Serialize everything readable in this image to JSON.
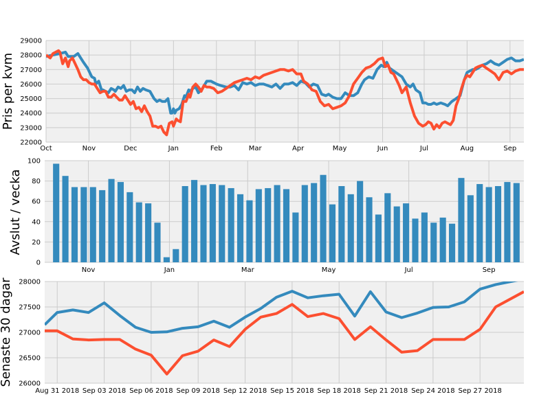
{
  "colors": {
    "blue": "#348ABD",
    "red": "#FC4F30",
    "panel_bg": "#F0F0F0",
    "grid": "#CBCBCB"
  },
  "chart_data": [
    {
      "type": "line",
      "ylabel": "Pris per kvm",
      "ylim": [
        22000,
        29000
      ],
      "yticks": [
        22000,
        23000,
        24000,
        25000,
        26000,
        27000,
        28000,
        29000
      ],
      "xlim": [
        0,
        345
      ],
      "xticks": [
        {
          "label": "Oct",
          "x": 0
        },
        {
          "label": "Nov",
          "x": 31
        },
        {
          "label": "Dec",
          "x": 61
        },
        {
          "label": "Jan",
          "x": 92
        },
        {
          "label": "Feb",
          "x": 123
        },
        {
          "label": "Mar",
          "x": 151
        },
        {
          "label": "Apr",
          "x": 182
        },
        {
          "label": "May",
          "x": 212
        },
        {
          "label": "Jun",
          "x": 243
        },
        {
          "label": "Jul",
          "x": 273
        },
        {
          "label": "Aug",
          "x": 304
        },
        {
          "label": "Sep",
          "x": 335
        }
      ],
      "grid": true,
      "series": [
        {
          "color": "blue",
          "x": [
            0,
            5,
            10,
            14,
            16,
            20,
            23,
            25,
            27,
            30,
            31,
            33,
            35,
            36,
            38,
            40,
            41,
            43,
            45,
            47,
            49,
            50,
            52,
            54,
            56,
            58,
            60,
            62,
            64,
            66,
            68,
            70,
            72,
            75,
            78,
            80,
            82,
            84,
            86,
            88,
            90,
            91,
            92,
            93,
            94,
            96,
            98,
            100,
            101,
            103,
            104,
            106,
            108,
            110,
            113,
            116,
            119,
            121,
            123,
            126,
            130,
            133,
            136,
            139,
            142,
            145,
            148,
            151,
            154,
            157,
            160,
            163,
            166,
            169,
            172,
            175,
            178,
            181,
            184,
            187,
            190,
            193,
            196,
            199,
            202,
            204,
            207,
            210,
            213,
            216,
            219,
            222,
            225,
            228,
            230,
            233,
            236,
            239,
            242,
            244,
            246,
            248,
            251,
            254,
            257,
            260,
            263,
            265,
            267,
            270,
            272,
            274,
            276,
            278,
            280,
            282,
            285,
            288,
            290,
            293,
            296,
            299,
            302,
            304,
            306,
            308,
            310,
            312,
            315,
            318,
            321,
            324,
            327,
            330,
            333,
            336,
            339,
            342,
            345
          ],
          "y": [
            27900,
            28000,
            28100,
            28200,
            27900,
            27900,
            28100,
            27800,
            27500,
            27100,
            26900,
            26500,
            26400,
            26000,
            26200,
            25600,
            25600,
            25500,
            25400,
            25700,
            25600,
            25500,
            25800,
            25700,
            25900,
            25500,
            25600,
            25600,
            25400,
            25800,
            25500,
            25700,
            25600,
            25500,
            25000,
            24800,
            24900,
            24800,
            24800,
            25000,
            24000,
            24000,
            24300,
            24000,
            24200,
            24300,
            24600,
            25200,
            25100,
            25600,
            25500,
            25700,
            25800,
            25400,
            25700,
            26200,
            26200,
            26100,
            26000,
            25900,
            25800,
            25800,
            25900,
            25600,
            26100,
            26000,
            26100,
            25900,
            26000,
            26000,
            25900,
            25800,
            26000,
            25700,
            26000,
            26000,
            26100,
            25900,
            26200,
            26100,
            25800,
            26000,
            25900,
            25300,
            25200,
            25300,
            25100,
            25000,
            25000,
            25400,
            25200,
            25200,
            25400,
            26000,
            26300,
            26500,
            26400,
            27000,
            27300,
            27200,
            27500,
            27100,
            26900,
            26700,
            26500,
            26000,
            25800,
            26000,
            25600,
            25400,
            24700,
            24700,
            24600,
            24600,
            24700,
            24600,
            24700,
            24600,
            24500,
            24800,
            25000,
            25200,
            26300,
            26800,
            26900,
            27000,
            27000,
            27100,
            27300,
            27400,
            27600,
            27400,
            27300,
            27500,
            27700,
            27800,
            27600,
            27600,
            27700
          ]
        },
        {
          "color": "red",
          "x": [
            0,
            3,
            5,
            7,
            9,
            10,
            12,
            14,
            16,
            17,
            19,
            21,
            23,
            25,
            27,
            29,
            31,
            33,
            35,
            37,
            39,
            41,
            43,
            45,
            47,
            49,
            51,
            53,
            55,
            57,
            59,
            61,
            63,
            65,
            67,
            69,
            71,
            73,
            75,
            77,
            79,
            81,
            83,
            85,
            87,
            89,
            91,
            92,
            94,
            95,
            97,
            99,
            101,
            103,
            104,
            106,
            108,
            110,
            112,
            114,
            116,
            118,
            121,
            124,
            127,
            130,
            133,
            136,
            139,
            142,
            145,
            148,
            151,
            154,
            157,
            160,
            163,
            166,
            169,
            172,
            175,
            178,
            181,
            184,
            186,
            189,
            192,
            195,
            198,
            201,
            204,
            207,
            210,
            213,
            216,
            219,
            222,
            225,
            228,
            231,
            234,
            237,
            240,
            243,
            245,
            247,
            249,
            251,
            253,
            255,
            257,
            260,
            263,
            266,
            269,
            272,
            274,
            276,
            278,
            280,
            282,
            284,
            286,
            288,
            290,
            292,
            294,
            296,
            298,
            300,
            302,
            304,
            306,
            308,
            310,
            312,
            315,
            318,
            321,
            324,
            327,
            330,
            333,
            336,
            339,
            342,
            345
          ],
          "y": [
            28000,
            27800,
            28100,
            28200,
            28300,
            28200,
            27400,
            27800,
            27200,
            27600,
            27800,
            27400,
            27000,
            26500,
            26300,
            26300,
            26100,
            26000,
            26000,
            25700,
            25400,
            25500,
            25500,
            25100,
            25100,
            25300,
            25100,
            24900,
            24900,
            25200,
            24900,
            24600,
            24800,
            24300,
            24400,
            24100,
            24500,
            24100,
            23800,
            23100,
            23100,
            23000,
            23100,
            22700,
            22500,
            23300,
            23400,
            23100,
            23600,
            23500,
            23400,
            24800,
            24800,
            25300,
            25100,
            25800,
            26000,
            25800,
            25500,
            25900,
            25800,
            25800,
            25700,
            25400,
            25500,
            25700,
            25900,
            26100,
            26200,
            26300,
            26400,
            26300,
            26500,
            26400,
            26600,
            26700,
            26800,
            26900,
            27000,
            27000,
            26900,
            27000,
            26700,
            26700,
            26200,
            26000,
            25600,
            25500,
            24800,
            24500,
            24600,
            24300,
            24400,
            24500,
            24700,
            25200,
            26000,
            26400,
            26800,
            27100,
            27200,
            27400,
            27700,
            27800,
            27200,
            27300,
            26800,
            26700,
            26300,
            25900,
            25400,
            25800,
            24700,
            23800,
            23300,
            23100,
            23200,
            23400,
            23300,
            22900,
            23200,
            23000,
            23300,
            23400,
            23300,
            23200,
            23500,
            24500,
            25000,
            25700,
            26300,
            26600,
            26500,
            26800,
            27100,
            27200,
            27300,
            27100,
            26900,
            26700,
            26300,
            26800,
            26900,
            26700,
            26900,
            27000,
            27000
          ]
        }
      ]
    },
    {
      "type": "bar",
      "ylabel": "Avslut / vecka",
      "ylim": [
        0,
        100
      ],
      "yticks": [
        0,
        20,
        40,
        60,
        80,
        100
      ],
      "xticks": [
        {
          "label": "Nov",
          "pos": 3.5
        },
        {
          "label": "Jan",
          "pos": 12.3
        },
        {
          "label": "Mar",
          "pos": 20.8
        },
        {
          "label": "May",
          "pos": 29.6
        },
        {
          "label": "Jul",
          "pos": 38.3
        },
        {
          "label": "Sep",
          "pos": 47.0
        }
      ],
      "grid": true,
      "series": [
        {
          "color": "blue",
          "values": [
            97,
            85,
            74,
            74,
            74,
            71,
            82,
            79,
            69,
            59,
            58,
            39,
            5,
            13,
            75,
            81,
            76,
            77,
            76,
            73,
            67,
            61,
            72,
            73,
            76,
            72,
            49,
            76,
            78,
            86,
            57,
            75,
            67,
            80,
            64,
            47,
            68,
            55,
            58,
            43,
            49,
            39,
            44,
            38,
            83,
            66,
            77,
            74,
            75,
            79,
            78
          ]
        }
      ]
    },
    {
      "type": "line",
      "ylabel": "Senaste 30 dagar",
      "ylim": [
        26000,
        28000
      ],
      "yticks": [
        26000,
        26500,
        27000,
        27500,
        28000
      ],
      "xlim": [
        -0.8,
        29.8
      ],
      "xticks": [
        {
          "label": "Aug 31 2018",
          "x": 0
        },
        {
          "label": "Sep 03 2018",
          "x": 3
        },
        {
          "label": "Sep 06 2018",
          "x": 6
        },
        {
          "label": "Sep 09 2018",
          "x": 9
        },
        {
          "label": "Sep 12 2018",
          "x": 12
        },
        {
          "label": "Sep 15 2018",
          "x": 15
        },
        {
          "label": "Sep 18 2018",
          "x": 18
        },
        {
          "label": "Sep 21 2018",
          "x": 21
        },
        {
          "label": "Sep 24 2018",
          "x": 24
        },
        {
          "label": "Sep 27 2018",
          "x": 27
        }
      ],
      "grid": true,
      "series": [
        {
          "color": "blue",
          "x": [
            -0.8,
            0,
            1,
            2,
            3,
            4,
            5,
            6,
            7,
            8,
            9,
            10,
            11,
            12,
            13,
            14,
            15,
            16,
            17,
            18,
            19,
            20,
            21,
            22,
            23,
            24,
            25,
            26,
            27,
            28,
            29.8
          ],
          "y": [
            27150,
            27390,
            27440,
            27390,
            27580,
            27330,
            27100,
            27000,
            27010,
            27080,
            27110,
            27220,
            27100,
            27300,
            27470,
            27690,
            27810,
            27680,
            27720,
            27750,
            27320,
            27800,
            27400,
            27290,
            27380,
            27490,
            27500,
            27600,
            27850,
            27940,
            28050
          ]
        },
        {
          "color": "red",
          "x": [
            -0.8,
            0,
            1,
            2,
            3,
            4,
            5,
            6,
            7,
            8,
            9,
            10,
            11,
            12,
            13,
            14,
            15,
            16,
            17,
            18,
            19,
            20,
            21,
            22,
            23,
            24,
            25,
            26,
            27,
            28,
            29.8
          ],
          "y": [
            27030,
            27030,
            26870,
            26850,
            26860,
            26860,
            26670,
            26550,
            26180,
            26540,
            26630,
            26850,
            26720,
            27060,
            27300,
            27370,
            27550,
            27310,
            27370,
            27270,
            26860,
            27110,
            26850,
            26610,
            26640,
            26860,
            26860,
            26860,
            27060,
            27500,
            27800
          ]
        }
      ]
    }
  ]
}
